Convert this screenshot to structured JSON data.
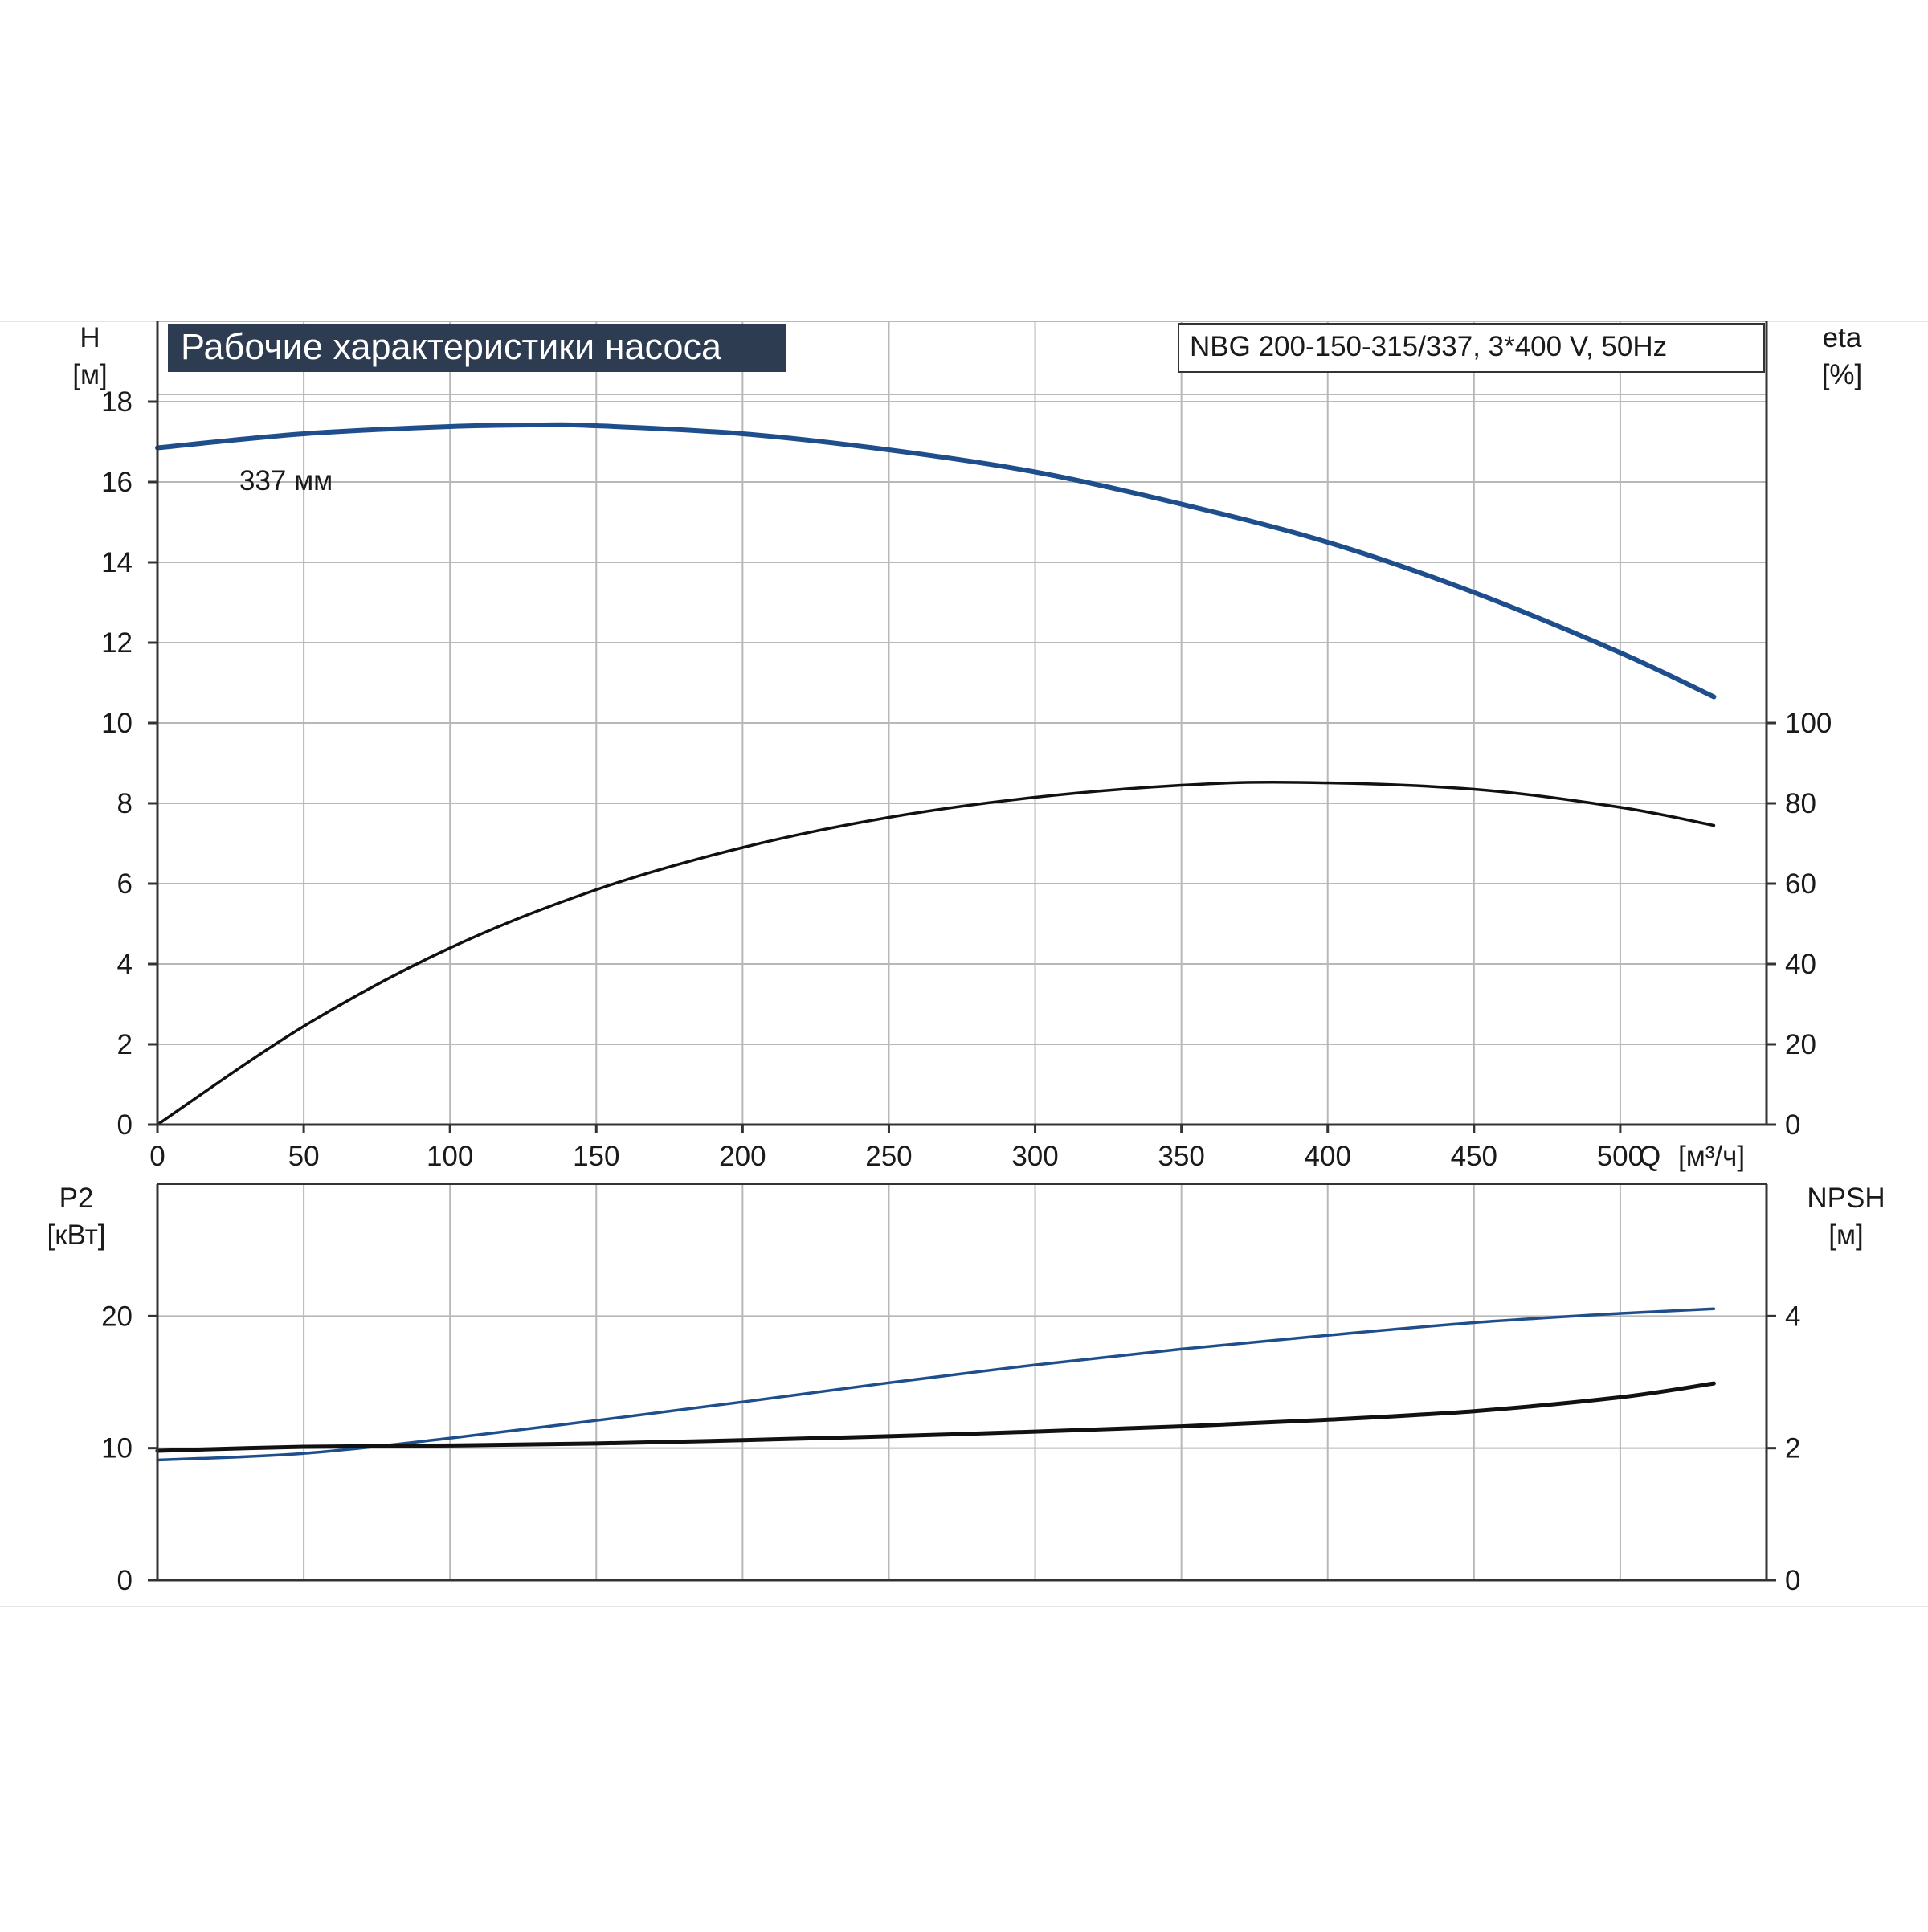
{
  "title": "Рабочие характеристики насоса",
  "model_label": "NBG 200-150-315/337, 3*400 V, 50Hz",
  "colors": {
    "head_curve": "#1f4e8c",
    "power_curve": "#1f4e8c",
    "efficiency_curve": "#111111",
    "npsh_curve": "#111111",
    "grid": "#b8b8b8",
    "axis": "#333333",
    "title_bg": "#2e3c52"
  },
  "chart_data": [
    {
      "type": "line",
      "name": "upper",
      "x_axis": {
        "label_name": "Q",
        "label_unit": "[м³/ч]",
        "range": [
          0,
          550
        ],
        "ticks": [
          0,
          50,
          100,
          150,
          200,
          250,
          300,
          350,
          400,
          450,
          500
        ],
        "tick_labels": [
          "0",
          "50",
          "100",
          "150",
          "200",
          "250",
          "300",
          "350",
          "400",
          "450",
          "500"
        ]
      },
      "y_left": {
        "label_name": "H",
        "label_unit": "[м]",
        "range": [
          0,
          20
        ],
        "ticks": [
          0,
          2,
          4,
          6,
          8,
          10,
          12,
          14,
          16,
          18
        ],
        "tick_labels": [
          "0",
          "2",
          "4",
          "6",
          "8",
          "10",
          "12",
          "14",
          "16",
          "18"
        ]
      },
      "y_right": {
        "label_name": "eta",
        "label_unit": "[%]",
        "range": [
          0,
          200
        ],
        "ticks": [
          0,
          20,
          40,
          60,
          80,
          100
        ],
        "tick_labels": [
          "0",
          "20",
          "40",
          "60",
          "80",
          "100"
        ]
      },
      "grid": true,
      "series": [
        {
          "name": "337 мм",
          "axis": "left",
          "x": [
            0,
            50,
            100,
            130,
            150,
            200,
            250,
            300,
            350,
            400,
            450,
            500,
            532
          ],
          "y": [
            16.85,
            17.2,
            17.38,
            17.42,
            17.4,
            17.2,
            16.8,
            16.25,
            15.45,
            14.5,
            13.25,
            11.75,
            10.65
          ]
        },
        {
          "axis": "right",
          "x": [
            0,
            50,
            100,
            150,
            200,
            250,
            300,
            350,
            390,
            450,
            500,
            532
          ],
          "y": [
            0,
            24.5,
            44,
            58.5,
            69,
            76.5,
            81.5,
            84.5,
            85.2,
            83.5,
            79,
            74.5
          ]
        }
      ]
    },
    {
      "type": "line",
      "name": "lower",
      "x_axis": {
        "range": [
          0,
          550
        ],
        "ticks": [
          0,
          50,
          100,
          150,
          200,
          250,
          300,
          350,
          400,
          450,
          500
        ]
      },
      "y_left": {
        "label_name": "P2",
        "label_unit": "[кВт]",
        "range": [
          0,
          30
        ],
        "ticks": [
          0,
          10,
          20
        ],
        "tick_labels": [
          "0",
          "10",
          "20"
        ]
      },
      "y_right": {
        "label_name": "NPSH",
        "label_unit": "[м]",
        "range": [
          0,
          6
        ],
        "ticks": [
          0,
          2,
          4
        ],
        "tick_labels": [
          "0",
          "2",
          "4"
        ]
      },
      "grid": true,
      "series": [
        {
          "axis": "left",
          "x": [
            0,
            50,
            100,
            150,
            200,
            250,
            300,
            350,
            400,
            450,
            500,
            532
          ],
          "y": [
            9.1,
            9.6,
            10.75,
            12.1,
            13.5,
            14.95,
            16.3,
            17.5,
            18.55,
            19.5,
            20.2,
            20.55
          ]
        },
        {
          "axis": "right",
          "x": [
            0,
            50,
            100,
            150,
            200,
            250,
            300,
            350,
            400,
            450,
            500,
            532
          ],
          "y": [
            1.96,
            2.02,
            2.04,
            2.07,
            2.12,
            2.18,
            2.25,
            2.33,
            2.43,
            2.56,
            2.77,
            2.98
          ]
        }
      ]
    }
  ]
}
